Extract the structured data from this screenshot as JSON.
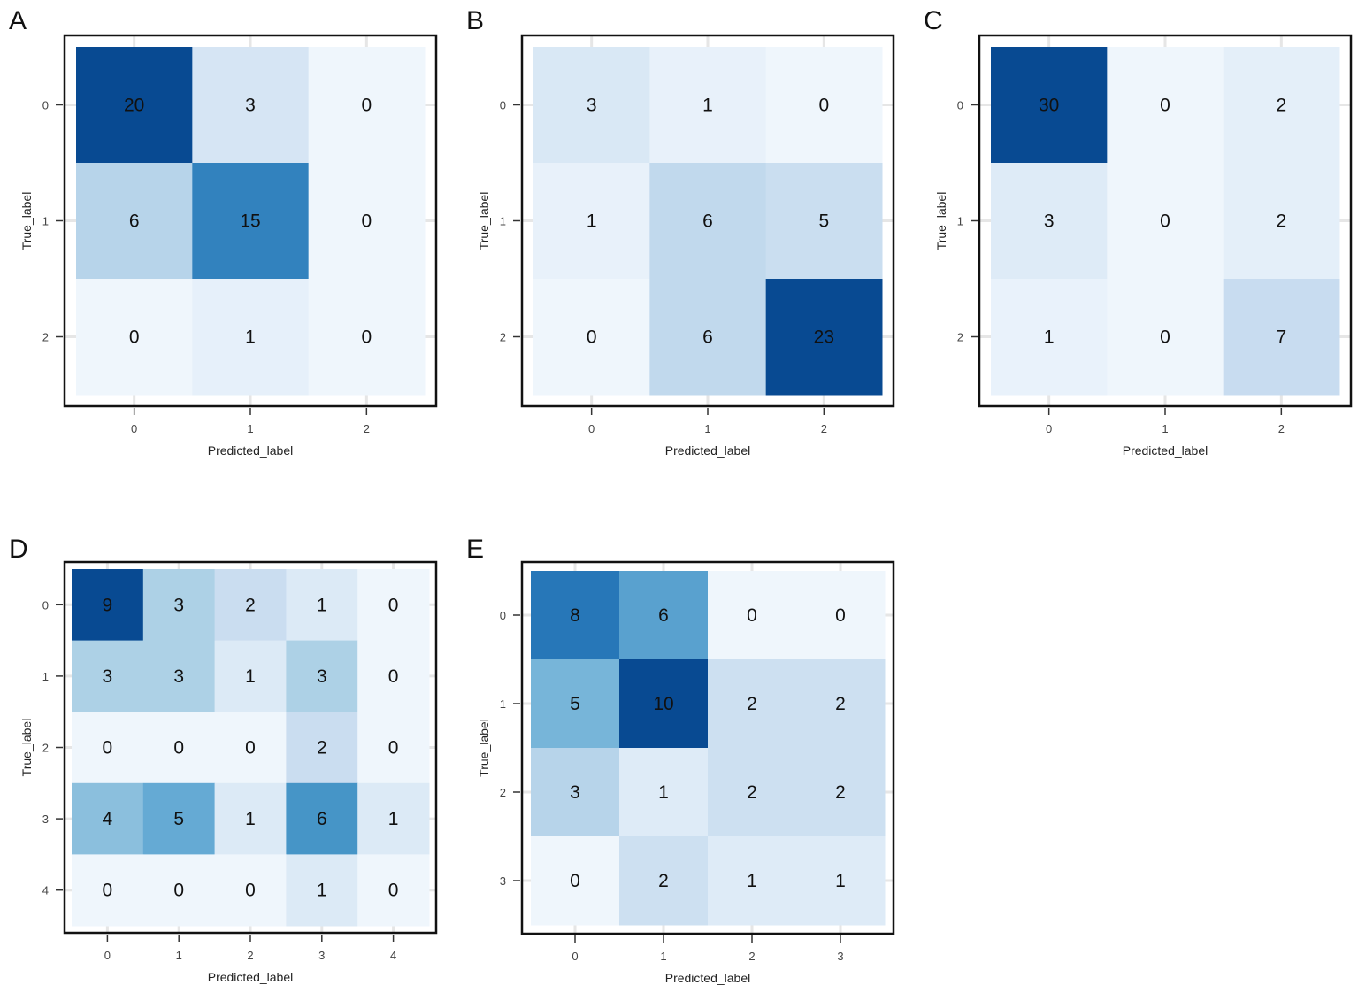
{
  "chart_data": [
    {
      "type": "heatmap",
      "panel": "A",
      "xlabel": "Predicted_label",
      "ylabel": "True_label",
      "x_ticks": [
        "0",
        "1",
        "2"
      ],
      "y_ticks": [
        "0",
        "1",
        "2"
      ],
      "matrix": [
        [
          20,
          3,
          0
        ],
        [
          6,
          15,
          0
        ],
        [
          0,
          1,
          0
        ]
      ]
    },
    {
      "type": "heatmap",
      "panel": "B",
      "xlabel": "Predicted_label",
      "ylabel": "True_label",
      "x_ticks": [
        "0",
        "1",
        "2"
      ],
      "y_ticks": [
        "0",
        "1",
        "2"
      ],
      "matrix": [
        [
          3,
          1,
          0
        ],
        [
          1,
          6,
          5
        ],
        [
          0,
          6,
          23
        ]
      ]
    },
    {
      "type": "heatmap",
      "panel": "C",
      "xlabel": "Predicted_label",
      "ylabel": "True_label",
      "x_ticks": [
        "0",
        "1",
        "2"
      ],
      "y_ticks": [
        "0",
        "1",
        "2"
      ],
      "matrix": [
        [
          30,
          0,
          2
        ],
        [
          3,
          0,
          2
        ],
        [
          1,
          0,
          7
        ]
      ]
    },
    {
      "type": "heatmap",
      "panel": "D",
      "xlabel": "Predicted_label",
      "ylabel": "True_label",
      "x_ticks": [
        "0",
        "1",
        "2",
        "3",
        "4"
      ],
      "y_ticks": [
        "0",
        "1",
        "2",
        "3",
        "4"
      ],
      "matrix": [
        [
          9,
          3,
          2,
          1,
          0
        ],
        [
          3,
          3,
          1,
          3,
          0
        ],
        [
          0,
          0,
          0,
          2,
          0
        ],
        [
          4,
          5,
          1,
          6,
          1
        ],
        [
          0,
          0,
          0,
          1,
          0
        ]
      ]
    },
    {
      "type": "heatmap",
      "panel": "E",
      "xlabel": "Predicted_label",
      "ylabel": "True_label",
      "x_ticks": [
        "0",
        "1",
        "2",
        "3"
      ],
      "y_ticks": [
        "0",
        "1",
        "2",
        "3"
      ],
      "matrix": [
        [
          8,
          6,
          0,
          0
        ],
        [
          5,
          10,
          2,
          2
        ],
        [
          3,
          1,
          2,
          2
        ],
        [
          0,
          2,
          1,
          1
        ]
      ]
    }
  ],
  "colormap": "Blues",
  "frame_color": "#111111",
  "grid_color": "#e6e6e6"
}
